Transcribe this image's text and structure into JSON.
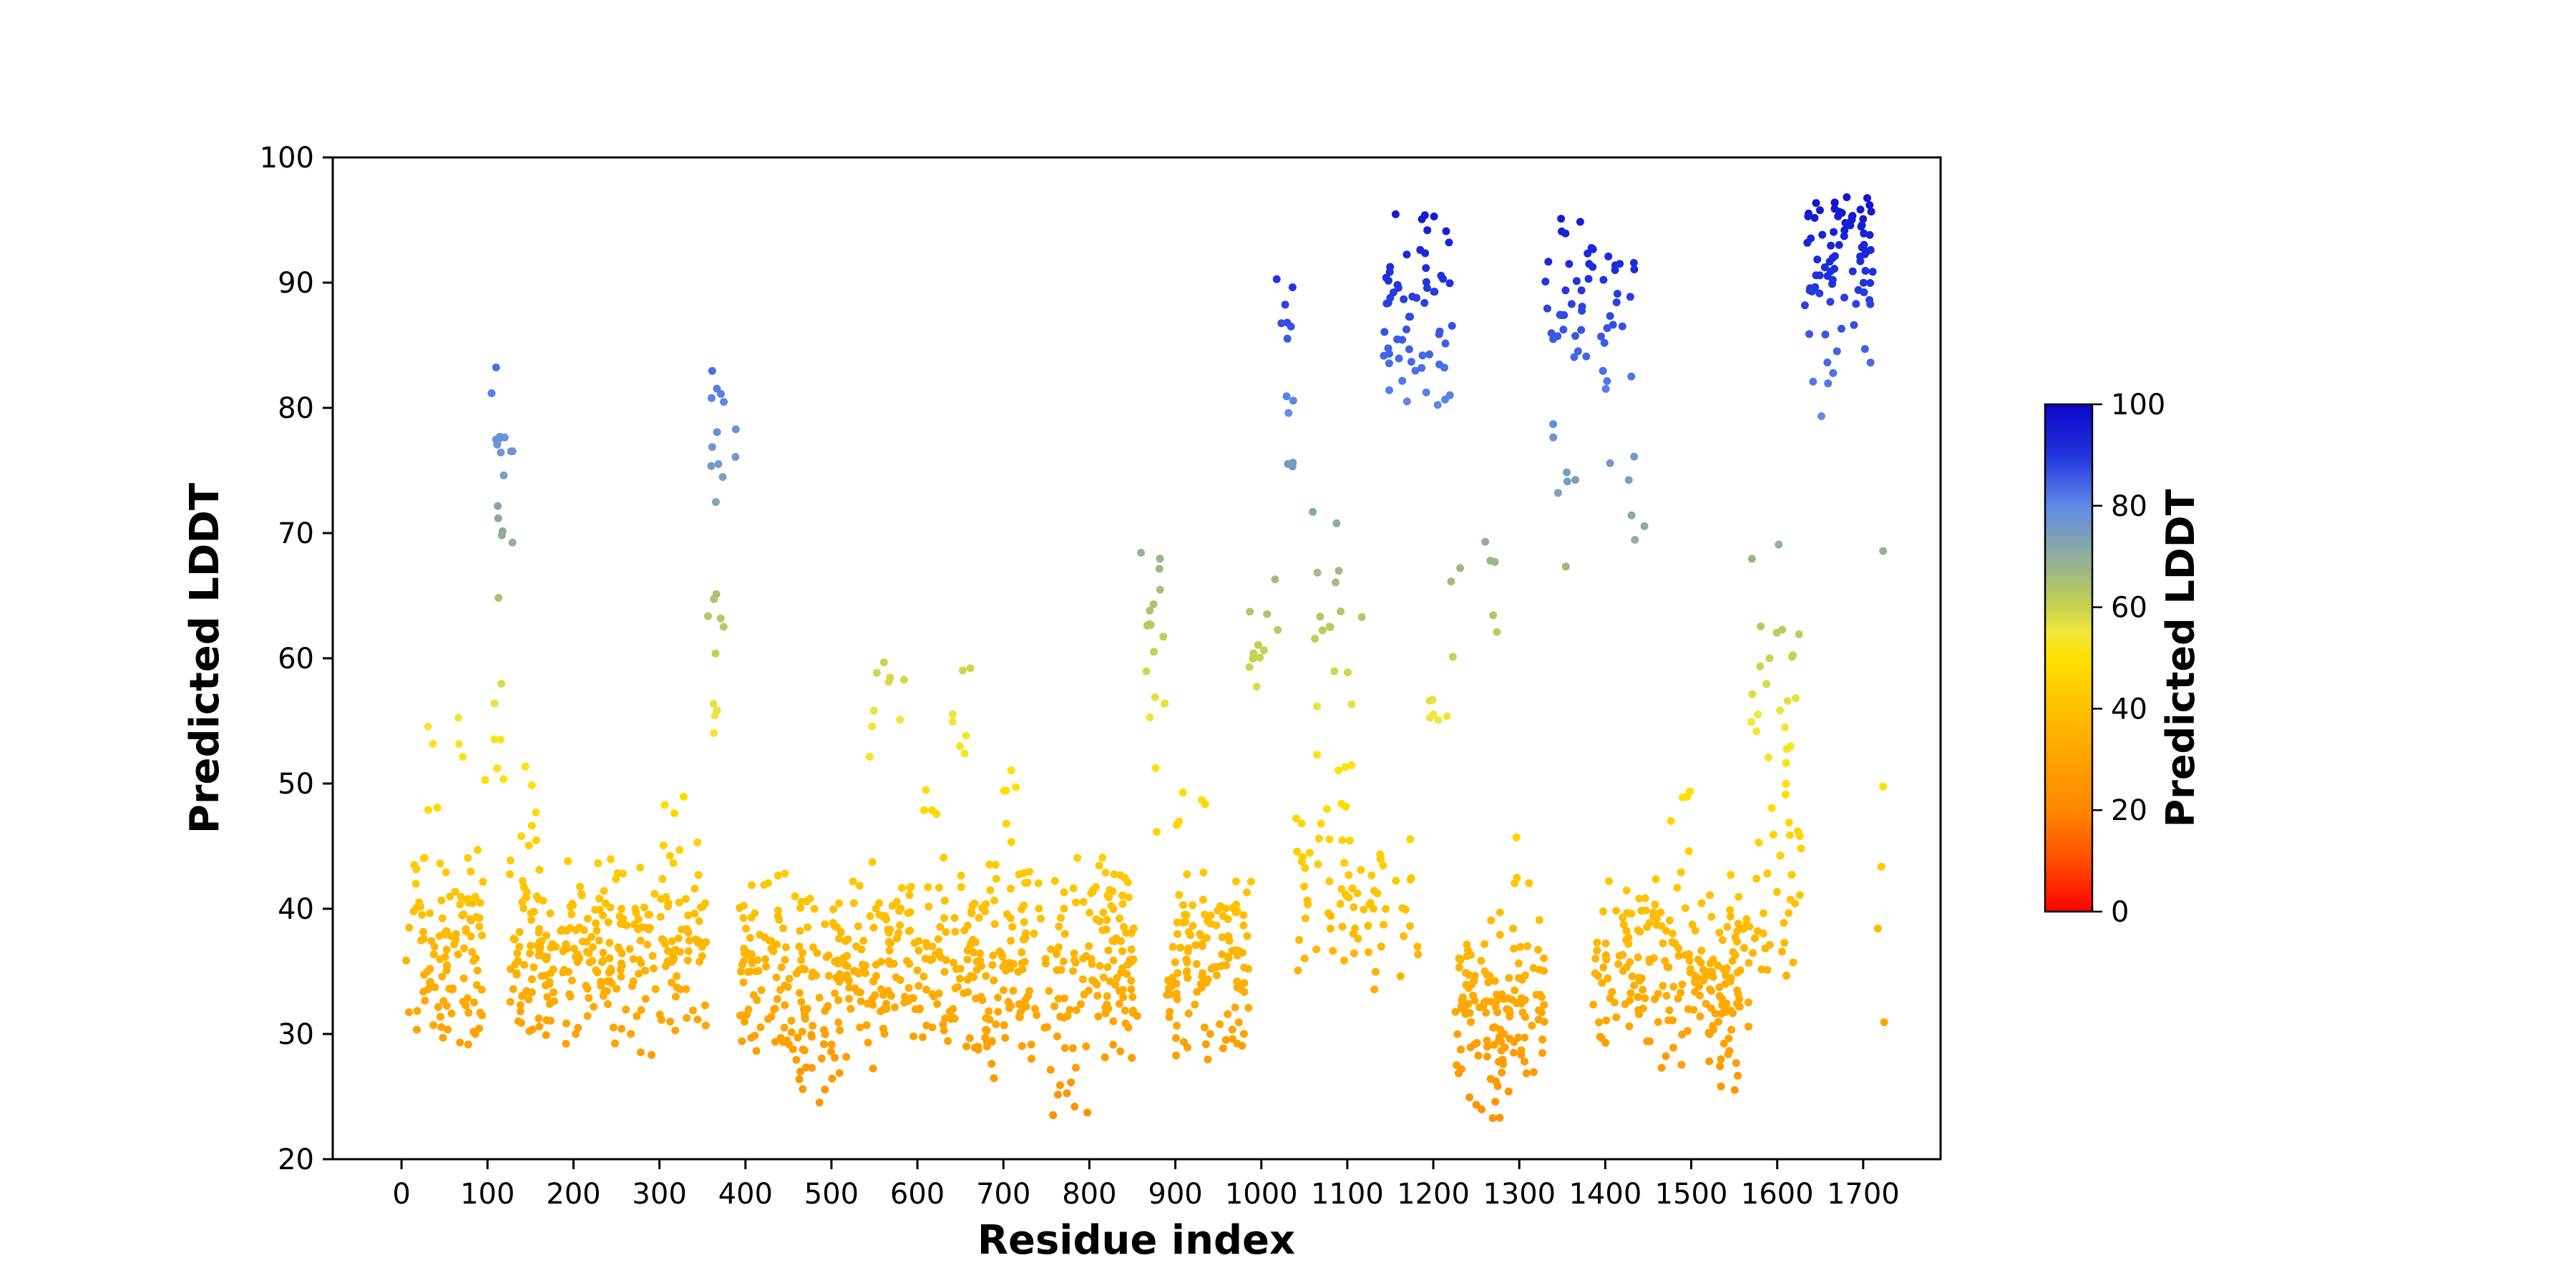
{
  "chart_data": {
    "type": "scatter",
    "title": "",
    "xlabel": "Residue index",
    "ylabel": "Predicted LDDT",
    "xlim": [
      -80,
      1790
    ],
    "ylim": [
      20,
      100
    ],
    "xticks": [
      0,
      100,
      200,
      300,
      400,
      500,
      600,
      700,
      800,
      900,
      1000,
      1100,
      1200,
      1300,
      1400,
      1500,
      1600,
      1700
    ],
    "yticks": [
      20,
      30,
      40,
      50,
      60,
      70,
      80,
      90,
      100
    ],
    "grid": false,
    "legend": "none",
    "point_radius": 5.5,
    "seed": 20,
    "color_encoding": "point color = y value (Predicted LDDT) mapped through colormap 0-100",
    "colormap_stops": [
      [
        0.0,
        "#ff0000"
      ],
      [
        0.1,
        "#ff4e00"
      ],
      [
        0.2,
        "#ff8800"
      ],
      [
        0.3,
        "#ffa200"
      ],
      [
        0.4,
        "#ffc000"
      ],
      [
        0.5,
        "#ffe000"
      ],
      [
        0.55,
        "#f2e63c"
      ],
      [
        0.6,
        "#c8d24e"
      ],
      [
        0.7,
        "#8fae9b"
      ],
      [
        0.8,
        "#5f8ae8"
      ],
      [
        0.9,
        "#2033dd"
      ],
      [
        1.0,
        "#0b06c8"
      ]
    ],
    "colorbar": {
      "label": "Predicted LDDT",
      "min": 0,
      "max": 100,
      "ticks": [
        0,
        20,
        40,
        60,
        80,
        100
      ]
    },
    "clusters": [
      {
        "x0": 5,
        "x1": 95,
        "n": 110,
        "ymin": 28,
        "ymax": 46,
        "t": "band"
      },
      {
        "x0": 30,
        "x1": 75,
        "n": 7,
        "ymin": 47,
        "ymax": 57.5,
        "t": "box"
      },
      {
        "x0": 95,
        "x1": 122,
        "n": 8,
        "ymin": 50,
        "ymax": 66,
        "t": "box"
      },
      {
        "x0": 104,
        "x1": 130,
        "n": 16,
        "ymin": 68,
        "ymax": 83.5,
        "t": "box"
      },
      {
        "x0": 125,
        "x1": 355,
        "n": 280,
        "ymin": 28,
        "ymax": 45.5,
        "t": "band"
      },
      {
        "x0": 133,
        "x1": 168,
        "n": 7,
        "ymin": 45,
        "ymax": 52.5,
        "t": "box"
      },
      {
        "x0": 300,
        "x1": 330,
        "n": 4,
        "ymin": 44,
        "ymax": 49,
        "t": "box"
      },
      {
        "x0": 352,
        "x1": 382,
        "n": 10,
        "ymin": 54,
        "ymax": 66.5,
        "t": "box"
      },
      {
        "x0": 360,
        "x1": 393,
        "n": 13,
        "ymin": 72,
        "ymax": 84,
        "t": "box"
      },
      {
        "x0": 393,
        "x1": 560,
        "n": 200,
        "ymin": 26,
        "ymax": 44,
        "t": "band"
      },
      {
        "x0": 452,
        "x1": 505,
        "n": 9,
        "ymin": 24.5,
        "ymax": 29,
        "t": "box"
      },
      {
        "x0": 543,
        "x1": 588,
        "n": 9,
        "ymin": 51,
        "ymax": 61,
        "t": "box"
      },
      {
        "x0": 560,
        "x1": 648,
        "n": 100,
        "ymin": 27,
        "ymax": 44,
        "t": "band"
      },
      {
        "x0": 600,
        "x1": 640,
        "n": 5,
        "ymin": 44,
        "ymax": 50,
        "t": "box"
      },
      {
        "x0": 640,
        "x1": 664,
        "n": 7,
        "ymin": 52,
        "ymax": 61.5,
        "t": "box"
      },
      {
        "x0": 648,
        "x1": 858,
        "n": 250,
        "ymin": 26,
        "ymax": 45,
        "t": "band"
      },
      {
        "x0": 700,
        "x1": 745,
        "n": 6,
        "ymin": 45,
        "ymax": 52,
        "t": "box"
      },
      {
        "x0": 755,
        "x1": 800,
        "n": 8,
        "ymin": 23.5,
        "ymax": 27.5,
        "t": "box"
      },
      {
        "x0": 858,
        "x1": 893,
        "n": 16,
        "ymin": 54,
        "ymax": 70.5,
        "t": "box"
      },
      {
        "x0": 872,
        "x1": 880,
        "n": 2,
        "ymin": 44,
        "ymax": 52,
        "t": "box"
      },
      {
        "x0": 888,
        "x1": 988,
        "n": 120,
        "ymin": 27,
        "ymax": 44.5,
        "t": "band"
      },
      {
        "x0": 900,
        "x1": 935,
        "n": 5,
        "ymin": 45,
        "ymax": 51,
        "t": "box"
      },
      {
        "x0": 985,
        "x1": 1022,
        "n": 11,
        "ymin": 56,
        "ymax": 67.5,
        "t": "box"
      },
      {
        "x0": 1016,
        "x1": 1040,
        "n": 13,
        "ymin": 74,
        "ymax": 91,
        "t": "box"
      },
      {
        "x0": 1040,
        "x1": 1140,
        "n": 60,
        "ymin": 32,
        "ymax": 50,
        "t": "band"
      },
      {
        "x0": 1058,
        "x1": 1118,
        "n": 20,
        "ymin": 50,
        "ymax": 73.5,
        "t": "box"
      },
      {
        "x0": 1140,
        "x1": 1185,
        "n": 14,
        "ymin": 34,
        "ymax": 46,
        "t": "band"
      },
      {
        "x0": 1142,
        "x1": 1222,
        "n": 62,
        "ymin": 79.5,
        "ymax": 96,
        "t": "box"
      },
      {
        "x0": 1190,
        "x1": 1235,
        "n": 9,
        "ymin": 55,
        "ymax": 71,
        "t": "box"
      },
      {
        "x0": 1225,
        "x1": 1330,
        "n": 130,
        "ymin": 24,
        "ymax": 40,
        "t": "band"
      },
      {
        "x0": 1240,
        "x1": 1300,
        "n": 5,
        "ymin": 23,
        "ymax": 25.5,
        "t": "box"
      },
      {
        "x0": 1255,
        "x1": 1278,
        "n": 5,
        "ymin": 62,
        "ymax": 70.5,
        "t": "box"
      },
      {
        "x0": 1290,
        "x1": 1320,
        "n": 4,
        "ymin": 42,
        "ymax": 50,
        "t": "box"
      },
      {
        "x0": 1330,
        "x1": 1386,
        "n": 32,
        "ymin": 84,
        "ymax": 95.5,
        "t": "box"
      },
      {
        "x0": 1336,
        "x1": 1368,
        "n": 6,
        "ymin": 72,
        "ymax": 80,
        "t": "box"
      },
      {
        "x0": 1352,
        "x1": 1360,
        "n": 1,
        "ymin": 67,
        "ymax": 67.5,
        "t": "box"
      },
      {
        "x0": 1395,
        "x1": 1438,
        "n": 20,
        "ymin": 80,
        "ymax": 92.5,
        "t": "box"
      },
      {
        "x0": 1405,
        "x1": 1448,
        "n": 6,
        "ymin": 69,
        "ymax": 77,
        "t": "box"
      },
      {
        "x0": 1386,
        "x1": 1465,
        "n": 80,
        "ymin": 28,
        "ymax": 44,
        "t": "band"
      },
      {
        "x0": 1465,
        "x1": 1568,
        "n": 130,
        "ymin": 26.5,
        "ymax": 44,
        "t": "band"
      },
      {
        "x0": 1470,
        "x1": 1500,
        "n": 5,
        "ymin": 44,
        "ymax": 50,
        "t": "box"
      },
      {
        "x0": 1528,
        "x1": 1560,
        "n": 6,
        "ymin": 25,
        "ymax": 28.5,
        "t": "box"
      },
      {
        "x0": 1565,
        "x1": 1628,
        "n": 30,
        "ymin": 31,
        "ymax": 48,
        "t": "band"
      },
      {
        "x0": 1568,
        "x1": 1626,
        "n": 26,
        "ymin": 48,
        "ymax": 70.5,
        "t": "box"
      },
      {
        "x0": 1632,
        "x1": 1712,
        "n": 72,
        "ymin": 88,
        "ymax": 97,
        "t": "box"
      },
      {
        "x0": 1634,
        "x1": 1695,
        "n": 10,
        "ymin": 78,
        "ymax": 87.5,
        "t": "box"
      },
      {
        "x0": 1700,
        "x1": 1712,
        "n": 2,
        "ymin": 83,
        "ymax": 85,
        "t": "box"
      },
      {
        "x0": 1714,
        "x1": 1726,
        "n": 1,
        "ymin": 68.5,
        "ymax": 69,
        "t": "box"
      },
      {
        "x0": 1716,
        "x1": 1726,
        "n": 4,
        "ymin": 30,
        "ymax": 51,
        "t": "box"
      }
    ]
  }
}
